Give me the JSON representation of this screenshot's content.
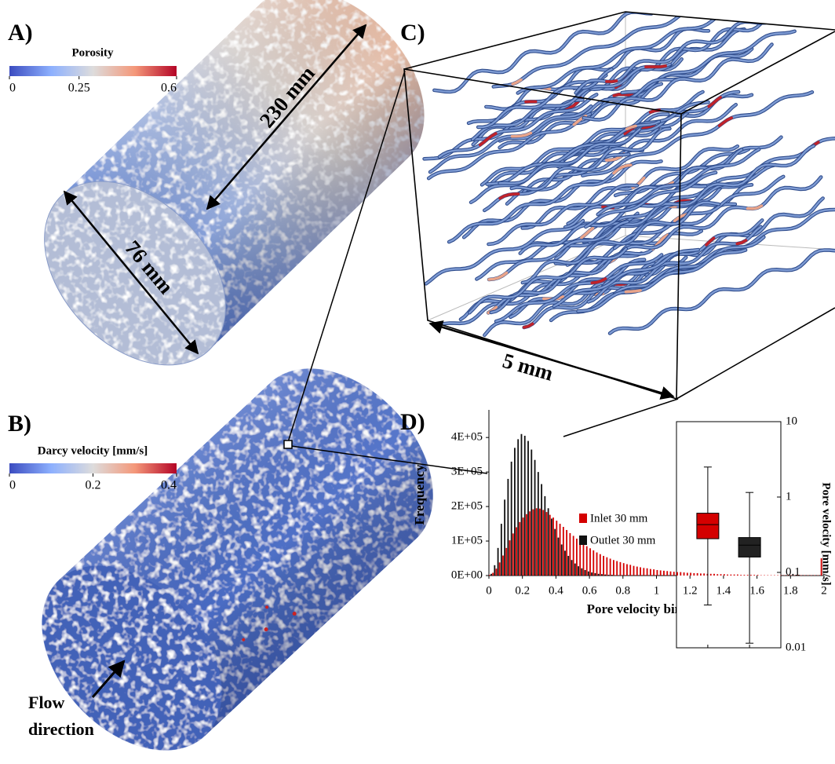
{
  "figure": {
    "panel_a": {
      "label": "A)",
      "colorbar": {
        "title": "Porosity",
        "lim": [
          0,
          0.6
        ],
        "ticks": [
          0,
          0.25,
          0.6
        ],
        "colormap": [
          "#3b4cc0",
          "#8db0fe",
          "#dddcdc",
          "#f4987a",
          "#b40426"
        ]
      },
      "annotations": [
        "230 mm",
        "76 mm"
      ]
    },
    "panel_b": {
      "label": "B)",
      "colorbar": {
        "title": "Darcy velocity [mm/s]",
        "lim": [
          0,
          0.4
        ],
        "ticks": [
          0,
          0.2,
          0.4
        ],
        "colormap": [
          "#3b4cc0",
          "#8db0fe",
          "#dddcdc",
          "#f4987a",
          "#b40426"
        ]
      },
      "annotations": [
        "Flow",
        "direction"
      ]
    },
    "panel_c": {
      "label": "C)",
      "annotations": [
        "5 mm"
      ]
    },
    "panel_d": {
      "label": "D)"
    }
  },
  "chart_data": [
    {
      "type": "histogram",
      "xlabel": "Pore velocity bin [mm/s]",
      "ylabel": "Frequency",
      "bins": [
        0,
        0.02,
        0.04,
        0.06,
        0.08,
        0.1,
        0.12,
        0.14,
        0.16,
        0.18,
        0.2,
        0.22,
        0.24,
        0.26,
        0.28,
        0.3,
        0.32,
        0.34,
        0.36,
        0.38,
        0.4,
        0.42,
        0.44,
        0.46,
        0.48,
        0.5,
        0.52,
        0.54,
        0.56,
        0.58,
        0.6,
        0.62,
        0.64,
        0.66,
        0.68,
        0.7,
        0.72,
        0.74,
        0.76,
        0.78,
        0.8,
        0.82,
        0.84,
        0.86,
        0.88,
        0.9,
        0.92,
        0.94,
        0.96,
        0.98,
        1,
        1.02,
        1.04,
        1.06,
        1.08,
        1.1,
        1.12,
        1.14,
        1.16,
        1.18,
        1.2,
        1.22,
        1.24,
        1.26,
        1.28,
        1.3,
        1.32,
        1.34,
        1.36,
        1.38,
        1.4,
        1.42,
        1.44,
        1.46,
        1.48,
        1.5,
        1.52,
        1.54,
        1.56,
        1.58,
        1.6,
        1.62,
        1.64,
        1.66,
        1.68,
        1.7,
        1.72,
        1.74,
        1.76,
        1.78,
        1.8,
        1.82,
        1.84,
        1.86,
        1.88,
        1.9,
        1.92,
        1.94,
        1.96,
        1.98,
        2
      ],
      "series": [
        {
          "name": "Inlet 30 mm",
          "color": "#d40000",
          "values": [
            2000,
            8000,
            20000,
            38000,
            58000,
            80000,
            102000,
            122000,
            140000,
            155000,
            168000,
            178000,
            186000,
            192000,
            195000,
            194000,
            190000,
            184000,
            176000,
            168000,
            159000,
            150000,
            141000,
            132000,
            123000,
            115000,
            107000,
            99000,
            92000,
            85000,
            79000,
            73000,
            67000,
            62000,
            57000,
            53000,
            49000,
            45000,
            42000,
            39000,
            36000,
            33000,
            31000,
            28000,
            26000,
            24000,
            22000,
            21000,
            19000,
            18000,
            16000,
            15000,
            14000,
            13000,
            12000,
            11000,
            10000,
            10000,
            9000,
            8000,
            8000,
            7000,
            7000,
            6000,
            6000,
            5000,
            5000,
            5000,
            4000,
            4000,
            4000,
            3000,
            3000,
            3000,
            3000,
            2000,
            2000,
            2000,
            2000,
            2000,
            2000,
            1000,
            1000,
            1000,
            1000,
            1000,
            1000,
            1000,
            1000,
            1000,
            1000,
            1000,
            1000,
            1000,
            1000,
            1000,
            1000,
            1000,
            1000,
            50000
          ]
        },
        {
          "name": "Outlet 30 mm",
          "color": "#111111",
          "values": [
            5000,
            30000,
            80000,
            150000,
            220000,
            280000,
            330000,
            370000,
            395000,
            410000,
            405000,
            390000,
            365000,
            335000,
            300000,
            265000,
            230000,
            195000,
            165000,
            135000,
            110000,
            90000,
            72000,
            57000,
            45000,
            35000,
            27000,
            21000,
            16000,
            12000,
            9000,
            7000,
            5000,
            4000,
            3000,
            2000,
            2000,
            1000,
            1000,
            1000,
            0,
            0,
            0,
            0,
            0,
            0,
            0,
            0,
            0,
            0,
            0,
            0,
            0,
            0,
            0,
            0,
            0,
            0,
            0,
            0,
            0,
            0,
            0,
            0,
            0,
            0,
            0,
            0,
            0,
            0,
            0,
            0,
            0,
            0,
            0,
            0,
            0,
            0,
            0,
            0,
            0,
            0,
            0,
            0,
            0,
            0,
            0,
            0,
            0,
            0,
            0,
            0,
            0,
            0,
            0,
            0,
            0,
            0,
            0,
            0
          ]
        }
      ],
      "xlim": [
        0,
        2
      ],
      "ylim": [
        0,
        480000
      ],
      "xticks": [
        0,
        0.2,
        0.4,
        0.6,
        0.8,
        1,
        1.2,
        1.4,
        1.6,
        1.8,
        2
      ],
      "yticks": [
        {
          "value": 0,
          "label": "0E+00"
        },
        {
          "value": 100000,
          "label": "1E+05"
        },
        {
          "value": 200000,
          "label": "2E+05"
        },
        {
          "value": 300000,
          "label": "3E+05"
        },
        {
          "value": 400000,
          "label": "4E+05"
        }
      ]
    },
    {
      "type": "box",
      "ylabel": "Pore velocity [mm/s]",
      "log_scale": true,
      "ylim": [
        0.01,
        10
      ],
      "yticks": [
        0.01,
        0.1,
        1,
        10
      ],
      "boxes": [
        {
          "color": "#d40000",
          "whislo": 0.037,
          "q1": 0.28,
          "med": 0.43,
          "q3": 0.61,
          "whishi": 2.5
        },
        {
          "color": "#222222",
          "whislo": 0.0115,
          "q1": 0.16,
          "med": 0.23,
          "q3": 0.29,
          "whishi": 1.15
        }
      ]
    }
  ]
}
